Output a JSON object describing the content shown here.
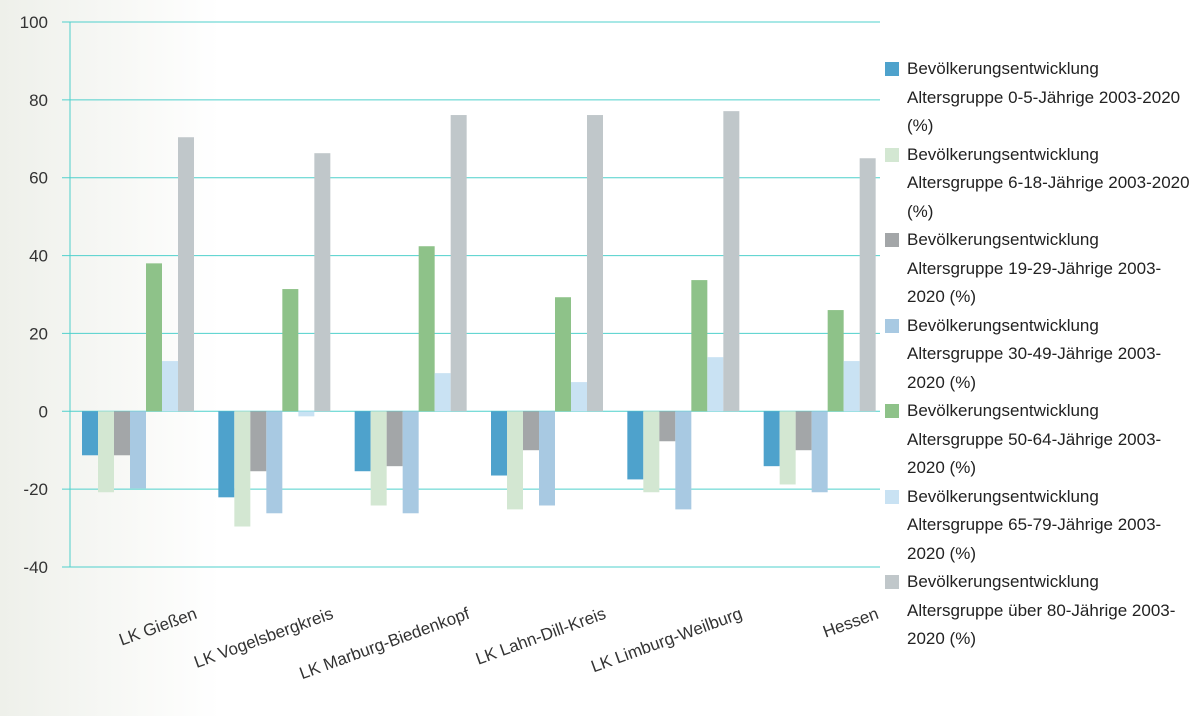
{
  "chart_data": {
    "type": "bar",
    "categories": [
      "LK Gießen",
      "LK Vogelsbergkreis",
      "LK Marburg-Biedenkopf",
      "LK Lahn-Dill-Kreis",
      "LK Limburg-Weilburg",
      "Hessen"
    ],
    "series": [
      {
        "name": "Bevölkerungsentwicklung Altersgruppe 0-5-Jährige 2003-2020 (%)",
        "color": "#4ea2cc",
        "values": [
          -11.3,
          -22.1,
          -15.4,
          -16.5,
          -17.5,
          -14.1
        ]
      },
      {
        "name": "Bevölkerungsentwicklung Altersgruppe 6-18-Jährige 2003-2020 (%)",
        "color": "#d3e7d2",
        "values": [
          -20.8,
          -29.6,
          -24.2,
          -25.2,
          -20.8,
          -18.8
        ]
      },
      {
        "name": "Bevölkerungsentwicklung Altersgruppe 19-29-Jährige 2003-2020 (%)",
        "color": "#a3a6a8",
        "values": [
          -11.3,
          -15.4,
          -14.1,
          -10,
          -7.7,
          -10
        ]
      },
      {
        "name": "Bevölkerungsentwicklung Altersgruppe 30-49-Jährige 2003-2020 (%)",
        "color": "#a8c9e2",
        "values": [
          -19.8,
          -26.2,
          -26.2,
          -24.2,
          -25.2,
          -20.8
        ]
      },
      {
        "name": "Bevölkerungsentwicklung Altersgruppe 50-64-Jährige 2003-2020 (%)",
        "color": "#8ec289",
        "values": [
          38,
          31.4,
          42.4,
          29.3,
          33.7,
          26
        ]
      },
      {
        "name": "Bevölkerungsentwicklung Altersgruppe 65-79-Jährige 2003-2020 (%)",
        "color": "#c9e2f3",
        "values": [
          12.9,
          -1.3,
          9.8,
          7.5,
          13.9,
          12.9
        ]
      },
      {
        "name": "Bevölkerungsentwicklung Altersgruppe über 80-Jährige 2003-2020 (%)",
        "color": "#c0c7ca",
        "values": [
          70.4,
          66.3,
          76.1,
          76.1,
          77.1,
          65
        ]
      }
    ],
    "ylim": [
      -40,
      100
    ],
    "yticks": [
      -40,
      -20,
      0,
      20,
      40,
      60,
      80,
      100
    ],
    "grid": true,
    "legend": "right"
  }
}
